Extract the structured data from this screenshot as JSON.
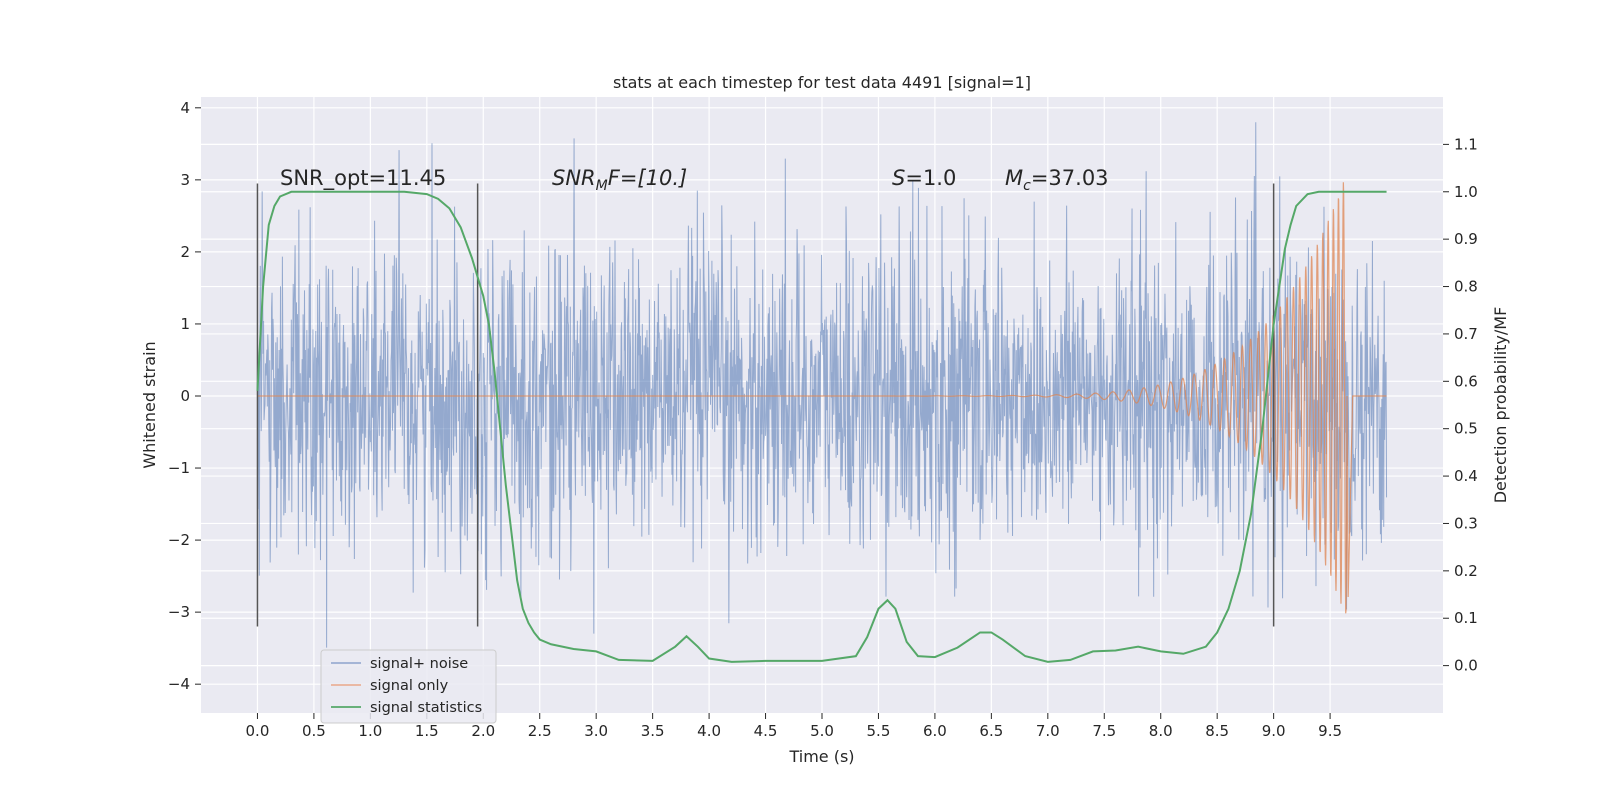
{
  "chart_data": {
    "type": "line",
    "title": "stats at each timestep for test data 4491 [signal=1]",
    "xlabel": "Time (s)",
    "ylabel": "Whitened strain",
    "ylabel_right": "Detection probability/MF",
    "xlim": [
      -0.5,
      10.5
    ],
    "ylim": [
      -4.4,
      4.15
    ],
    "ylim_right": [
      -0.1,
      1.2
    ],
    "xticks": [
      "0.0",
      "0.5",
      "1.0",
      "1.5",
      "2.0",
      "2.5",
      "3.0",
      "3.5",
      "4.0",
      "4.5",
      "5.0",
      "5.5",
      "6.0",
      "6.5",
      "7.0",
      "7.5",
      "8.0",
      "8.5",
      "9.0",
      "9.5"
    ],
    "yticks_left": [
      "−4",
      "−3",
      "−2",
      "−1",
      "0",
      "1",
      "2",
      "3",
      "4"
    ],
    "yticks_right": [
      "0.0",
      "0.1",
      "0.2",
      "0.3",
      "0.4",
      "0.5",
      "0.6",
      "0.7",
      "0.8",
      "0.9",
      "1.0",
      "1.1"
    ],
    "grid": true,
    "legend_position": "lower-left",
    "annotations": {
      "snr_opt": "SNR_opt=11.45",
      "snr_mf_main": "SNR",
      "snr_mf_sub": "M",
      "snr_mf_rest": "F=[10.]",
      "s_main": "S",
      "s_rest": "=1.0",
      "mc_main": "M",
      "mc_sub": "c",
      "mc_rest": "=37.03"
    },
    "vertical_markers_x": [
      0.0,
      1.95,
      9.0
    ],
    "series": [
      {
        "name": "signal+ noise",
        "color": "#4c72b0",
        "x_range": [
          0.0,
          10.0
        ],
        "envelope_min": -4.05,
        "envelope_max": 3.8,
        "typical_band": [
          -2.0,
          2.0
        ]
      },
      {
        "name": "signal only",
        "color": "#dd8452",
        "chirp": {
          "start": 5.5,
          "peak": 9.65,
          "end": 9.7,
          "peak_amplitude": 3.1
        }
      },
      {
        "name": "signal statistics",
        "color": "#55a868",
        "axis": "right",
        "x": [
          0.0,
          0.05,
          0.1,
          0.15,
          0.2,
          0.3,
          0.5,
          0.8,
          1.0,
          1.3,
          1.5,
          1.6,
          1.7,
          1.8,
          1.9,
          2.0,
          2.05,
          2.1,
          2.15,
          2.2,
          2.25,
          2.3,
          2.35,
          2.4,
          2.45,
          2.5,
          2.6,
          2.8,
          3.0,
          3.2,
          3.5,
          3.7,
          3.8,
          3.9,
          4.0,
          4.2,
          4.5,
          5.0,
          5.3,
          5.4,
          5.5,
          5.58,
          5.65,
          5.75,
          5.85,
          6.0,
          6.2,
          6.4,
          6.5,
          6.6,
          6.8,
          7.0,
          7.2,
          7.4,
          7.6,
          7.8,
          8.0,
          8.2,
          8.4,
          8.5,
          8.6,
          8.7,
          8.8,
          8.9,
          9.0,
          9.1,
          9.15,
          9.2,
          9.3,
          9.4,
          9.5,
          9.7,
          10.0
        ],
        "y": [
          0.58,
          0.8,
          0.93,
          0.97,
          0.99,
          1.0,
          1.0,
          1.0,
          1.0,
          1.0,
          0.995,
          0.985,
          0.965,
          0.925,
          0.86,
          0.78,
          0.72,
          0.62,
          0.5,
          0.38,
          0.28,
          0.18,
          0.12,
          0.09,
          0.07,
          0.055,
          0.045,
          0.035,
          0.03,
          0.012,
          0.01,
          0.04,
          0.062,
          0.04,
          0.015,
          0.008,
          0.01,
          0.01,
          0.02,
          0.06,
          0.12,
          0.138,
          0.12,
          0.05,
          0.02,
          0.018,
          0.038,
          0.07,
          0.07,
          0.055,
          0.02,
          0.008,
          0.012,
          0.03,
          0.032,
          0.04,
          0.03,
          0.025,
          0.04,
          0.07,
          0.12,
          0.2,
          0.32,
          0.5,
          0.72,
          0.88,
          0.93,
          0.97,
          0.995,
          1.0,
          1.0,
          1.0,
          1.0
        ]
      }
    ]
  },
  "legend": {
    "items": [
      {
        "label": "signal+ noise",
        "color": "#8ea3cd"
      },
      {
        "label": "signal only",
        "color": "#e9a88a"
      },
      {
        "label": "signal statistics",
        "color": "#55a868"
      }
    ]
  }
}
